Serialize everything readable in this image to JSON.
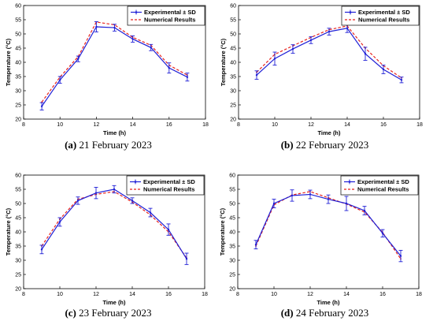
{
  "colors": {
    "experimental": "#1f1fd6",
    "numerical": "#e8231e",
    "axis": "#000000"
  },
  "chart_data": [
    {
      "type": "line",
      "caption_letter": "(a)",
      "caption_text": " 21 February 2023",
      "xlabel": "Time (h)",
      "ylabel": "Temperature (°C)",
      "xlim": [
        8,
        18
      ],
      "ylim": [
        20,
        60
      ],
      "xticks": [
        "8",
        "10",
        "12",
        "14",
        "16",
        "18"
      ],
      "yticks": [
        "20",
        "25",
        "30",
        "35",
        "40",
        "45",
        "50",
        "55",
        "60"
      ],
      "legend_position": "top-right",
      "x": [
        9,
        10,
        11,
        12,
        13,
        14,
        15,
        16,
        17
      ],
      "series": [
        {
          "name": "Experimental ± SD",
          "style": "solid-errorbar",
          "values": [
            24.5,
            33.8,
            41.2,
            52.5,
            52.2,
            48.2,
            45.2,
            38.0,
            34.8
          ],
          "sd": [
            1.3,
            1.2,
            1.0,
            1.8,
            1.2,
            1.1,
            1.1,
            1.8,
            1.4
          ]
        },
        {
          "name": "Numerical Results",
          "style": "dashed",
          "values": [
            26.0,
            34.8,
            42.0,
            54.2,
            53.2,
            48.8,
            46.0,
            39.0,
            35.5
          ]
        }
      ]
    },
    {
      "type": "line",
      "caption_letter": "(b)",
      "caption_text": " 22 February 2023",
      "xlabel": "Time (h)",
      "ylabel": "Temperature (°C)",
      "xlim": [
        8,
        18
      ],
      "ylim": [
        20,
        60
      ],
      "xticks": [
        "8",
        "10",
        "12",
        "14",
        "16",
        "18"
      ],
      "yticks": [
        "20",
        "25",
        "30",
        "35",
        "40",
        "45",
        "50",
        "55",
        "60"
      ],
      "legend_position": "top-right",
      "x": [
        9,
        10,
        11,
        12,
        13,
        14,
        15,
        16,
        17
      ],
      "series": [
        {
          "name": "Experimental ± SD",
          "style": "solid-errorbar",
          "values": [
            35.5,
            41.3,
            44.7,
            47.8,
            50.8,
            52.0,
            43.0,
            37.5,
            33.8
          ],
          "sd": [
            1.5,
            2.3,
            1.5,
            1.2,
            1.2,
            1.5,
            2.3,
            1.5,
            1.0
          ]
        },
        {
          "name": "Numerical Results",
          "style": "dashed",
          "values": [
            36.5,
            42.8,
            45.8,
            48.8,
            51.5,
            52.8,
            45.0,
            38.8,
            34.5
          ]
        }
      ]
    },
    {
      "type": "line",
      "caption_letter": "(c)",
      "caption_text": " 23 February 2023",
      "xlabel": "Time (h)",
      "ylabel": "Temperature (°C)",
      "xlim": [
        8,
        18
      ],
      "ylim": [
        20,
        60
      ],
      "xticks": [
        "8",
        "10",
        "12",
        "14",
        "16",
        "18"
      ],
      "yticks": [
        "20",
        "25",
        "30",
        "35",
        "40",
        "45",
        "50",
        "55",
        "60"
      ],
      "legend_position": "top-right",
      "x": [
        9,
        10,
        11,
        12,
        13,
        14,
        15,
        16,
        17
      ],
      "series": [
        {
          "name": "Experimental ± SD",
          "style": "solid-errorbar",
          "values": [
            33.8,
            43.5,
            51.0,
            53.7,
            55.0,
            51.0,
            46.8,
            40.8,
            30.5
          ],
          "sd": [
            1.5,
            1.5,
            1.3,
            2.0,
            1.3,
            1.0,
            1.5,
            2.0,
            2.0
          ]
        },
        {
          "name": "Numerical Results",
          "style": "dashed",
          "values": [
            35.0,
            44.5,
            51.5,
            53.2,
            54.2,
            50.5,
            46.0,
            40.0,
            30.8
          ]
        }
      ]
    },
    {
      "type": "line",
      "caption_letter": "(d)",
      "caption_text": " 24 February 2023",
      "xlabel": "Time (h)",
      "ylabel": "Temperature (°C)",
      "xlim": [
        8,
        18
      ],
      "ylim": [
        20,
        60
      ],
      "xticks": [
        "8",
        "10",
        "12",
        "14",
        "16",
        "18"
      ],
      "yticks": [
        "20",
        "25",
        "30",
        "35",
        "40",
        "45",
        "50",
        "55",
        "60"
      ],
      "legend_position": "top-right",
      "x": [
        9,
        10,
        11,
        12,
        13,
        14,
        15,
        16,
        17
      ],
      "series": [
        {
          "name": "Experimental ± SD",
          "style": "solid-errorbar",
          "values": [
            35.5,
            50.0,
            52.8,
            53.2,
            51.5,
            50.0,
            47.5,
            39.5,
            31.5
          ],
          "sd": [
            1.5,
            1.5,
            2.0,
            1.5,
            1.5,
            2.5,
            1.5,
            1.3,
            2.0
          ]
        },
        {
          "name": "Numerical Results",
          "style": "dashed",
          "values": [
            35.0,
            49.5,
            53.0,
            54.2,
            52.0,
            49.8,
            47.0,
            39.8,
            30.5
          ]
        }
      ]
    }
  ]
}
